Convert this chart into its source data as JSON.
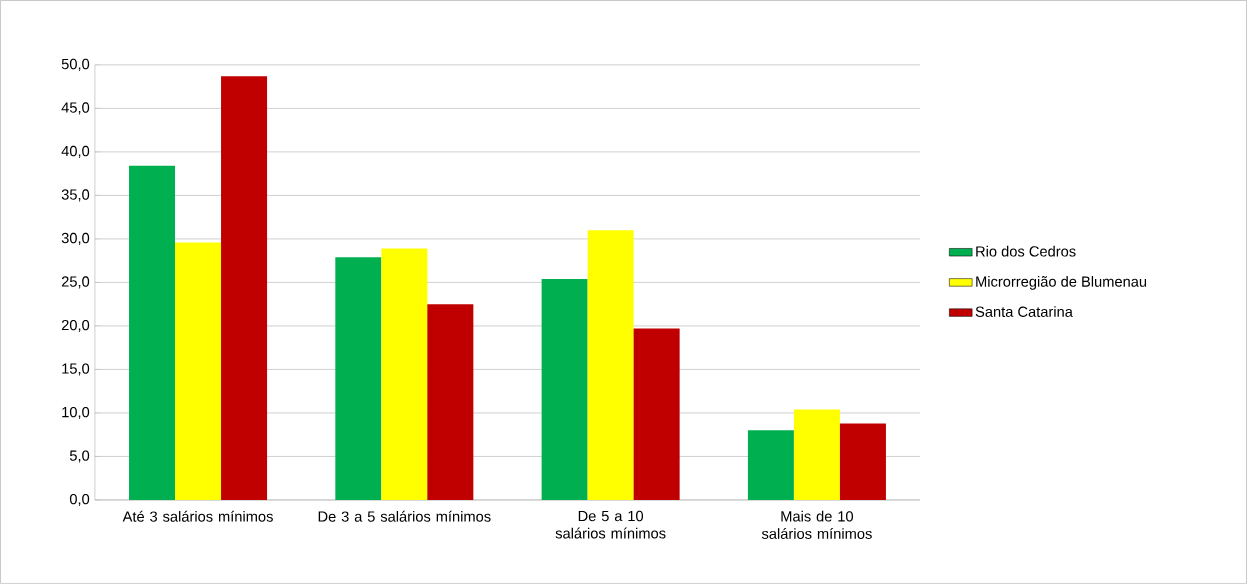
{
  "chart_data": {
    "type": "bar",
    "categories": [
      "Até 3 salários mínimos",
      "De 3 a 5 salários mínimos",
      "De 5 a 10 salários mínimos",
      "Mais de 10 salários mínimos"
    ],
    "series": [
      {
        "name": "Rio dos Cedros",
        "color": "#00b050",
        "values": [
          38.4,
          27.9,
          25.4,
          8.0
        ]
      },
      {
        "name": "Microrregião de Blumenau",
        "color": "#ffff00",
        "values": [
          29.6,
          28.9,
          31.0,
          10.4
        ]
      },
      {
        "name": "Santa Catarina",
        "color": "#c00000",
        "values": [
          48.7,
          22.5,
          19.7,
          8.8
        ]
      }
    ],
    "ylim": [
      0,
      50
    ],
    "yticks": [
      {
        "value": 0,
        "label": "0,0"
      },
      {
        "value": 5,
        "label": "5,0"
      },
      {
        "value": 10,
        "label": "10,0"
      },
      {
        "value": 15,
        "label": "15,0"
      },
      {
        "value": 20,
        "label": "20,0"
      },
      {
        "value": 25,
        "label": "25,0"
      },
      {
        "value": 30,
        "label": "30,0"
      },
      {
        "value": 35,
        "label": "35,0"
      },
      {
        "value": 40,
        "label": "40,0"
      },
      {
        "value": 45,
        "label": "45,0"
      },
      {
        "value": 50,
        "label": "50,0"
      }
    ],
    "grid": true,
    "legend": "right"
  }
}
